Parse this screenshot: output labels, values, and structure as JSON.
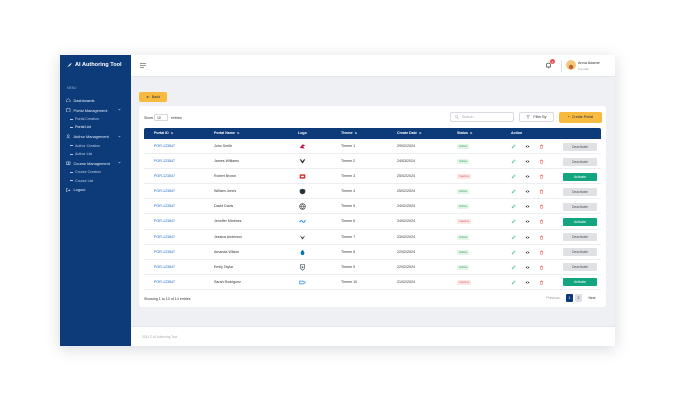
{
  "app": {
    "title": "AI Authoring Tool",
    "menu_caption": "MENU"
  },
  "sidebar": {
    "items": [
      {
        "label": "Dashboards",
        "icon": "home-icon"
      },
      {
        "label": "Portal Management",
        "icon": "portal-icon",
        "children": [
          "Portal Creation",
          "Portal List"
        ]
      },
      {
        "label": "Author Management",
        "icon": "user-icon",
        "children": [
          "Author Creation",
          "Author List"
        ]
      },
      {
        "label": "Course Management",
        "icon": "book-icon",
        "children": [
          "Course Creation",
          "Course List"
        ]
      },
      {
        "label": "Logout",
        "icon": "logout-icon"
      }
    ],
    "active_sub": "Portal List"
  },
  "topbar": {
    "notification_count": "1",
    "user_name": "Anna Adame",
    "user_role": "Founder"
  },
  "toolbar": {
    "back_label": "Back",
    "show_label": "Show",
    "page_size": "10",
    "entries_label": "entries",
    "search_placeholder": "Search...",
    "filter_label": "Filter By",
    "create_label": "Create Portal"
  },
  "table": {
    "headers": [
      "Portal ID",
      "Portal Name",
      "Logo",
      "Theme",
      "Create Date",
      "Status",
      "Action"
    ],
    "rows": [
      {
        "id": "POR-123547",
        "name": "John Smith",
        "logo": "bird-logo-icon",
        "theme": "Theme 1",
        "date": "29/02/2024",
        "status": "Active",
        "toggle": "Deactivate"
      },
      {
        "id": "POR-123547",
        "name": "James Williams",
        "logo": "chevron-logo-icon",
        "theme": "Theme 2",
        "date": "24/03/2024",
        "status": "Active",
        "toggle": "Deactivate"
      },
      {
        "id": "POR-123547",
        "name": "Robert Brown",
        "logo": "square-logo-icon",
        "theme": "Theme 3",
        "date": "25/02/2024",
        "status": "Inactive",
        "toggle": "Activate"
      },
      {
        "id": "POR-123547",
        "name": "William Jones",
        "logo": "shield-logo-icon",
        "theme": "Theme 4",
        "date": "25/02/2024",
        "status": "Active",
        "toggle": "Deactivate"
      },
      {
        "id": "POR-123547",
        "name": "David Davis",
        "logo": "globe-logo-icon",
        "theme": "Theme 5",
        "date": "24/02/2024",
        "status": "Active",
        "toggle": "Deactivate"
      },
      {
        "id": "POR-123547",
        "name": "Jennifer Martinez",
        "logo": "wave-logo-icon",
        "theme": "Theme 6",
        "date": "24/02/2024",
        "status": "Inactive",
        "toggle": "Activate"
      },
      {
        "id": "POR-123547",
        "name": "Jessica Anderson",
        "logo": "wings-logo-icon",
        "theme": "Theme 7",
        "date": "23/02/2024",
        "status": "Active",
        "toggle": "Deactivate"
      },
      {
        "id": "POR-123547",
        "name": "Amanda Wilson",
        "logo": "drop-logo-icon",
        "theme": "Theme 8",
        "date": "22/02/2024",
        "status": "Active",
        "toggle": "Deactivate"
      },
      {
        "id": "POR-123547",
        "name": "Emily Taylor",
        "logo": "crest-logo-icon",
        "theme": "Theme 9",
        "date": "22/02/2024",
        "status": "Active",
        "toggle": "Deactivate"
      },
      {
        "id": "POR-123547",
        "name": "Sarah Rodriguez",
        "logo": "tag-logo-icon",
        "theme": "Theme 10",
        "date": "21/02/2024",
        "status": "Inactive",
        "toggle": "Activate"
      }
    ]
  },
  "pagination": {
    "showing": "Showing 1 to 10 of 14 entries",
    "prev": "Previous",
    "pages": [
      "1",
      "2"
    ],
    "next": "Next"
  },
  "footer": {
    "text": "2024 © AI Authoring Tool"
  },
  "colors": {
    "primary": "#0d3b7a",
    "accent": "#f7b93e",
    "activate": "#12a57f"
  }
}
